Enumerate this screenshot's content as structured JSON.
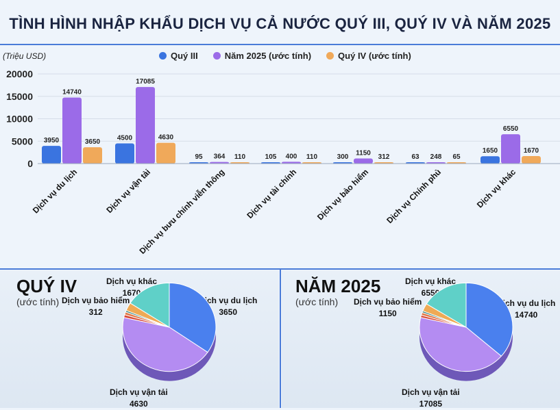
{
  "title": "TÌNH HÌNH NHẬP KHẨU DỊCH VỤ CẢ NƯỚC QUÝ III, QUÝ IV VÀ NĂM 2025",
  "chart_data": [
    {
      "type": "bar",
      "title": "TÌNH HÌNH NHẬP KHẨU DỊCH VỤ CẢ NƯỚC QUÝ III, QUÝ IV VÀ NĂM 2025",
      "ylabel": "(Triệu USD)",
      "ylim": [
        0,
        20000
      ],
      "yticks": [
        0,
        5000,
        10000,
        15000,
        20000
      ],
      "legend_position": "top",
      "categories": [
        "Dịch vụ du lịch",
        "Dịch vụ vận tải",
        "Dịch vụ bưu chính viễn thông",
        "Dịch vụ tài chính",
        "Dịch vụ bảo hiểm",
        "Dịch vụ Chính phủ",
        "Dịch vụ khác"
      ],
      "series": [
        {
          "name": "Quý III",
          "color": "#3a74e0",
          "values": [
            3950,
            4500,
            95,
            105,
            300,
            63,
            1650
          ]
        },
        {
          "name": "Năm 2025 (ước tính)",
          "color": "#9b6be8",
          "values": [
            14740,
            17085,
            364,
            400,
            1150,
            248,
            6550
          ]
        },
        {
          "name": "Quý IV (ước tính)",
          "color": "#f0a95a",
          "values": [
            3650,
            4630,
            110,
            110,
            312,
            65,
            1670
          ]
        }
      ]
    },
    {
      "type": "pie",
      "title": "QUÝ IV",
      "subtitle": "(ước tính)",
      "labels": [
        "Dịch vụ du lịch",
        "Dịch vụ vận tải",
        "Dịch vụ bưu chính viễn thông",
        "Dịch vụ tài chính",
        "Dịch vụ Chính phủ",
        "Dịch vụ bảo hiểm",
        "Dịch vụ khác"
      ],
      "values": [
        3650,
        4630,
        110,
        110,
        65,
        312,
        1670
      ],
      "shown_labels": [
        {
          "name": "Dịch vụ du lịch",
          "value": "3650"
        },
        {
          "name": "Dịch vụ vận tải",
          "value": "4630"
        },
        {
          "name": "Dịch vụ bảo hiểm",
          "value": "312"
        },
        {
          "name": "Dịch vụ khác",
          "value": "1670"
        }
      ]
    },
    {
      "type": "pie",
      "title": "NĂM 2025",
      "subtitle": "(ước tính)",
      "labels": [
        "Dịch vụ du lịch",
        "Dịch vụ vận tải",
        "Dịch vụ bưu chính viễn thông",
        "Dịch vụ tài chính",
        "Dịch vụ Chính phủ",
        "Dịch vụ bảo hiểm",
        "Dịch vụ khác"
      ],
      "values": [
        14740,
        17085,
        364,
        400,
        248,
        1150,
        6550
      ],
      "shown_labels": [
        {
          "name": "Dịch vụ du lịch",
          "value": "14740"
        },
        {
          "name": "Dịch vụ vận tải",
          "value": "17085"
        },
        {
          "name": "Dịch vụ bảo hiểm",
          "value": "1150"
        },
        {
          "name": "Dịch vụ khác",
          "value": "6550"
        }
      ]
    }
  ],
  "pie_colors": [
    "#4a80ee",
    "#b48cf2",
    "#d94a3a",
    "#e07a4a",
    "#2f7f7a",
    "#eeaa55",
    "#5fd0c8"
  ]
}
